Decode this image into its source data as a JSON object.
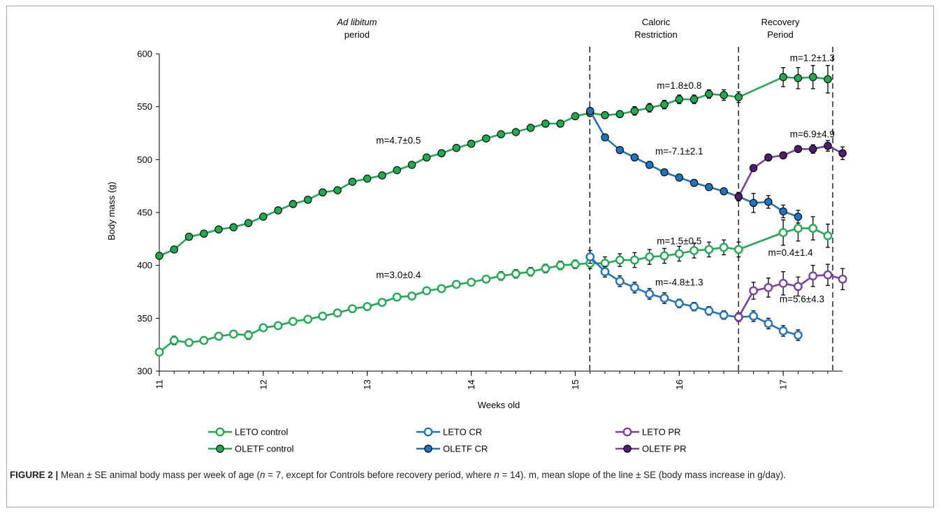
{
  "chart_data": {
    "type": "line",
    "xlabel": "Weeks old",
    "ylabel": "Body mass (g)",
    "xlim": [
      11,
      17.57
    ],
    "ylim": [
      300,
      600
    ],
    "x_ticks": [
      "11",
      "12",
      "13",
      "14",
      "15",
      "16",
      "17"
    ],
    "y_ticks": [
      "300",
      "350",
      "400",
      "450",
      "500",
      "550",
      "600"
    ],
    "period_labels": [
      {
        "line1": "Ad libitum",
        "line2": "period"
      },
      {
        "line1": "Caloric",
        "line2": "Restriction"
      },
      {
        "line1": "Recovery",
        "line2": "Period"
      }
    ],
    "period_boundaries": [
      15.14,
      16.57,
      17.57
    ],
    "annotations": [
      {
        "text": "m=4.7±0.5",
        "x": 13.3,
        "y": 515
      },
      {
        "text": "m=3.0±0.4",
        "x": 13.3,
        "y": 388
      },
      {
        "text": "m=1.8±0.8",
        "x": 16.0,
        "y": 567
      },
      {
        "text": "m=-7.1±2.1",
        "x": 16.0,
        "y": 505
      },
      {
        "text": "m=1.5±0.5",
        "x": 16.0,
        "y": 420
      },
      {
        "text": "m=-4.8±1.3",
        "x": 16.0,
        "y": 381
      },
      {
        "text": "m=1.2±1.3",
        "x": 17.28,
        "y": 593
      },
      {
        "text": "m=6.9±4.9",
        "x": 17.28,
        "y": 521
      },
      {
        "text": "m=0.4±1.4",
        "x": 17.07,
        "y": 409
      },
      {
        "text": "m=5.6±4.3",
        "x": 17.18,
        "y": 365
      }
    ],
    "series": [
      {
        "name": "OLETF control",
        "color": "#1fab4f",
        "fill": "#1fab4f",
        "x": [
          11.0,
          11.143,
          11.286,
          11.429,
          11.571,
          11.714,
          11.857,
          12.0,
          12.143,
          12.286,
          12.429,
          12.571,
          12.714,
          12.857,
          13.0,
          13.143,
          13.286,
          13.429,
          13.571,
          13.714,
          13.857,
          14.0,
          14.143,
          14.286,
          14.429,
          14.571,
          14.714,
          14.857,
          15.0,
          15.143,
          15.286,
          15.429,
          15.571,
          15.714,
          15.857,
          16.0,
          16.143,
          16.286,
          16.429,
          16.571,
          17.0,
          17.143,
          17.286,
          17.429
        ],
        "y": [
          409,
          415,
          427,
          430,
          434,
          436,
          440,
          446,
          452,
          458,
          462,
          469,
          471,
          479,
          482,
          485,
          490,
          495,
          502,
          506,
          511,
          515,
          520,
          524,
          526,
          530,
          534,
          534,
          541,
          544,
          542,
          543,
          546,
          549,
          552,
          557,
          557,
          562,
          561,
          559,
          578,
          577,
          578,
          576
        ],
        "err": [
          2,
          2,
          3,
          3,
          3,
          3,
          2,
          2,
          3,
          3,
          3,
          2,
          2,
          2,
          2,
          2,
          2,
          2,
          2,
          2,
          2,
          2,
          2,
          2,
          2,
          2,
          2,
          3,
          3,
          3,
          3,
          3,
          4,
          4,
          4,
          4,
          4,
          4,
          5,
          5,
          9,
          10,
          11,
          13
        ]
      },
      {
        "name": "LETO control",
        "color": "#1fab4f",
        "fill": "#ffffff",
        "x": [
          11.0,
          11.143,
          11.286,
          11.429,
          11.571,
          11.714,
          11.857,
          12.0,
          12.143,
          12.286,
          12.429,
          12.571,
          12.714,
          12.857,
          13.0,
          13.143,
          13.286,
          13.429,
          13.571,
          13.714,
          13.857,
          14.0,
          14.143,
          14.286,
          14.429,
          14.571,
          14.714,
          14.857,
          15.0,
          15.143,
          15.286,
          15.429,
          15.571,
          15.714,
          15.857,
          16.0,
          16.143,
          16.286,
          16.429,
          16.571,
          17.0,
          17.143,
          17.286,
          17.429
        ],
        "y": [
          318,
          329,
          327,
          329,
          333,
          335,
          334,
          341,
          343,
          347,
          349,
          352,
          355,
          359,
          361,
          365,
          370,
          371,
          376,
          378,
          382,
          384,
          387,
          390,
          392,
          394,
          397,
          400,
          401,
          402,
          402,
          405,
          405,
          408,
          409,
          411,
          414,
          415,
          417,
          415,
          431,
          435,
          435,
          428
        ],
        "err": [
          2,
          4,
          2,
          2,
          2,
          3,
          4,
          3,
          2,
          2,
          2,
          3,
          3,
          3,
          3,
          3,
          3,
          3,
          3,
          3,
          3,
          3,
          3,
          4,
          4,
          4,
          4,
          4,
          4,
          5,
          6,
          6,
          7,
          7,
          7,
          7,
          7,
          7,
          7,
          7,
          12,
          12,
          11,
          11
        ]
      },
      {
        "name": "OLETF CR",
        "color": "#1f74c0",
        "fill": "#1f74c0",
        "x": [
          15.143,
          15.286,
          15.429,
          15.571,
          15.714,
          15.857,
          16.0,
          16.143,
          16.286,
          16.429,
          16.571,
          16.714,
          16.857,
          17.0,
          17.143
        ],
        "y": [
          546,
          521,
          509,
          502,
          495,
          488,
          483,
          478,
          474,
          470,
          465,
          459,
          460,
          451,
          446
        ],
        "err": [
          3,
          3,
          3,
          3,
          3,
          3,
          3,
          3,
          3,
          3,
          4,
          9,
          6,
          6,
          6
        ]
      },
      {
        "name": "LETO CR",
        "color": "#1f74c0",
        "fill": "#ffffff",
        "x": [
          15.143,
          15.286,
          15.429,
          15.571,
          15.714,
          15.857,
          16.0,
          16.143,
          16.286,
          16.429,
          16.571,
          16.714,
          16.857,
          17.0,
          17.143
        ],
        "y": [
          408,
          394,
          385,
          379,
          373,
          369,
          364,
          361,
          357,
          353,
          351,
          352,
          345,
          338,
          334
        ],
        "err": [
          6,
          5,
          5,
          5,
          5,
          5,
          4,
          4,
          4,
          4,
          4,
          5,
          5,
          5,
          5
        ]
      },
      {
        "name": "OLETF PR",
        "color": "#7b3fa3",
        "fill": "#4b1e6e",
        "x": [
          16.571,
          16.714,
          16.857,
          17.0,
          17.143,
          17.286,
          17.429,
          17.571
        ],
        "y": [
          465,
          492,
          502,
          504,
          510,
          510,
          513,
          506
        ],
        "err": [
          3,
          3,
          3,
          3,
          3,
          4,
          5,
          6
        ]
      },
      {
        "name": "LETO PR",
        "color": "#7b3fa3",
        "fill": "#ffffff",
        "x": [
          16.571,
          16.714,
          16.857,
          17.0,
          17.143,
          17.286,
          17.429,
          17.571
        ],
        "y": [
          351,
          376,
          379,
          383,
          380,
          390,
          391,
          387
        ],
        "err": [
          4,
          8,
          9,
          11,
          9,
          10,
          10,
          10
        ]
      }
    ],
    "legend": [
      "LETO control",
      "LETO CR",
      "LETO PR",
      "OLETF control",
      "OLETF CR",
      "OLETF PR"
    ]
  },
  "caption": {
    "label": "FIGURE 2 |",
    "text_1": " Mean ± SE animal body mass per week of age (",
    "n1_var": "n",
    "text_2": " = 7, except for Controls before recovery period, where ",
    "n2_var": "n",
    "text_3": " = 14). m, mean slope of the line ± SE (body mass increase in g/day)."
  }
}
